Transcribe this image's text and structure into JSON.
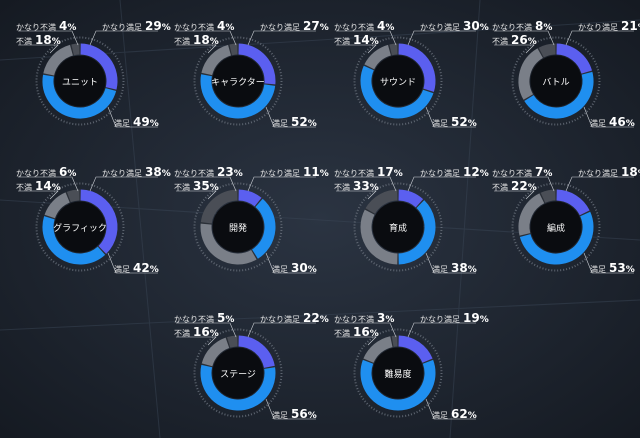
{
  "chart_data": [
    {
      "type": "pie",
      "title": "ユニット",
      "categories": [
        "かなり満足",
        "満足",
        "不満",
        "かなり不満"
      ],
      "values": [
        29,
        49,
        18,
        4
      ]
    },
    {
      "type": "pie",
      "title": "キャラクター",
      "categories": [
        "かなり満足",
        "満足",
        "不満",
        "かなり不満"
      ],
      "values": [
        27,
        52,
        18,
        4
      ]
    },
    {
      "type": "pie",
      "title": "サウンド",
      "categories": [
        "かなり満足",
        "満足",
        "不満",
        "かなり不満"
      ],
      "values": [
        30,
        52,
        14,
        4
      ]
    },
    {
      "type": "pie",
      "title": "バトル",
      "categories": [
        "かなり満足",
        "満足",
        "不満",
        "かなり不満"
      ],
      "values": [
        21,
        46,
        26,
        8
      ]
    },
    {
      "type": "pie",
      "title": "グラフィック",
      "categories": [
        "かなり満足",
        "満足",
        "不満",
        "かなり不満"
      ],
      "values": [
        38,
        42,
        14,
        6
      ]
    },
    {
      "type": "pie",
      "title": "開発",
      "categories": [
        "かなり満足",
        "満足",
        "不満",
        "かなり不満"
      ],
      "values": [
        11,
        30,
        35,
        23
      ]
    },
    {
      "type": "pie",
      "title": "育成",
      "categories": [
        "かなり満足",
        "満足",
        "不満",
        "かなり不満"
      ],
      "values": [
        12,
        38,
        33,
        17
      ]
    },
    {
      "type": "pie",
      "title": "編成",
      "categories": [
        "かなり満足",
        "満足",
        "不満",
        "かなり不満"
      ],
      "values": [
        18,
        53,
        22,
        7
      ]
    },
    {
      "type": "pie",
      "title": "ステージ",
      "categories": [
        "かなり満足",
        "満足",
        "不満",
        "かなり不満"
      ],
      "values": [
        22,
        56,
        16,
        5
      ]
    },
    {
      "type": "pie",
      "title": "難易度",
      "categories": [
        "かなり満足",
        "満足",
        "不満",
        "かなり不満"
      ],
      "values": [
        19,
        62,
        16,
        3
      ]
    }
  ],
  "colors": {
    "very_satisfied": "#5b5ff0",
    "satisfied": "#1f8ff0",
    "dissatisfied": "#7a7f88",
    "very_dissatisfied": "#4a4e56",
    "background": "#1f2632"
  }
}
